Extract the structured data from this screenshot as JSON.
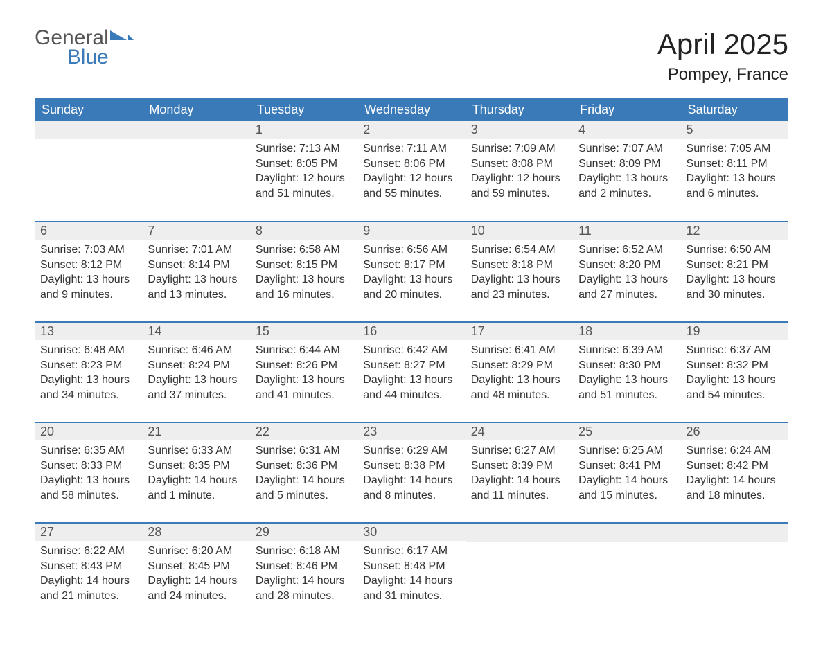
{
  "logo": {
    "text_general": "General",
    "text_blue": "Blue"
  },
  "title": "April 2025",
  "subtitle": "Pompey, France",
  "colors": {
    "header_bg": "#3b7ab8",
    "header_text": "#ffffff",
    "daynum_bg": "#eeeeee",
    "row_border": "#3b7ab8",
    "body_text": "#333333",
    "logo_gray": "#555555",
    "logo_blue": "#3b7ab8",
    "background": "#ffffff"
  },
  "weekdays": [
    "Sunday",
    "Monday",
    "Tuesday",
    "Wednesday",
    "Thursday",
    "Friday",
    "Saturday"
  ],
  "weeks": [
    [
      null,
      null,
      {
        "day": "1",
        "sunrise": "7:13 AM",
        "sunset": "8:05 PM",
        "daylight": "12 hours and 51 minutes."
      },
      {
        "day": "2",
        "sunrise": "7:11 AM",
        "sunset": "8:06 PM",
        "daylight": "12 hours and 55 minutes."
      },
      {
        "day": "3",
        "sunrise": "7:09 AM",
        "sunset": "8:08 PM",
        "daylight": "12 hours and 59 minutes."
      },
      {
        "day": "4",
        "sunrise": "7:07 AM",
        "sunset": "8:09 PM",
        "daylight": "13 hours and 2 minutes."
      },
      {
        "day": "5",
        "sunrise": "7:05 AM",
        "sunset": "8:11 PM",
        "daylight": "13 hours and 6 minutes."
      }
    ],
    [
      {
        "day": "6",
        "sunrise": "7:03 AM",
        "sunset": "8:12 PM",
        "daylight": "13 hours and 9 minutes."
      },
      {
        "day": "7",
        "sunrise": "7:01 AM",
        "sunset": "8:14 PM",
        "daylight": "13 hours and 13 minutes."
      },
      {
        "day": "8",
        "sunrise": "6:58 AM",
        "sunset": "8:15 PM",
        "daylight": "13 hours and 16 minutes."
      },
      {
        "day": "9",
        "sunrise": "6:56 AM",
        "sunset": "8:17 PM",
        "daylight": "13 hours and 20 minutes."
      },
      {
        "day": "10",
        "sunrise": "6:54 AM",
        "sunset": "8:18 PM",
        "daylight": "13 hours and 23 minutes."
      },
      {
        "day": "11",
        "sunrise": "6:52 AM",
        "sunset": "8:20 PM",
        "daylight": "13 hours and 27 minutes."
      },
      {
        "day": "12",
        "sunrise": "6:50 AM",
        "sunset": "8:21 PM",
        "daylight": "13 hours and 30 minutes."
      }
    ],
    [
      {
        "day": "13",
        "sunrise": "6:48 AM",
        "sunset": "8:23 PM",
        "daylight": "13 hours and 34 minutes."
      },
      {
        "day": "14",
        "sunrise": "6:46 AM",
        "sunset": "8:24 PM",
        "daylight": "13 hours and 37 minutes."
      },
      {
        "day": "15",
        "sunrise": "6:44 AM",
        "sunset": "8:26 PM",
        "daylight": "13 hours and 41 minutes."
      },
      {
        "day": "16",
        "sunrise": "6:42 AM",
        "sunset": "8:27 PM",
        "daylight": "13 hours and 44 minutes."
      },
      {
        "day": "17",
        "sunrise": "6:41 AM",
        "sunset": "8:29 PM",
        "daylight": "13 hours and 48 minutes."
      },
      {
        "day": "18",
        "sunrise": "6:39 AM",
        "sunset": "8:30 PM",
        "daylight": "13 hours and 51 minutes."
      },
      {
        "day": "19",
        "sunrise": "6:37 AM",
        "sunset": "8:32 PM",
        "daylight": "13 hours and 54 minutes."
      }
    ],
    [
      {
        "day": "20",
        "sunrise": "6:35 AM",
        "sunset": "8:33 PM",
        "daylight": "13 hours and 58 minutes."
      },
      {
        "day": "21",
        "sunrise": "6:33 AM",
        "sunset": "8:35 PM",
        "daylight": "14 hours and 1 minute."
      },
      {
        "day": "22",
        "sunrise": "6:31 AM",
        "sunset": "8:36 PM",
        "daylight": "14 hours and 5 minutes."
      },
      {
        "day": "23",
        "sunrise": "6:29 AM",
        "sunset": "8:38 PM",
        "daylight": "14 hours and 8 minutes."
      },
      {
        "day": "24",
        "sunrise": "6:27 AM",
        "sunset": "8:39 PM",
        "daylight": "14 hours and 11 minutes."
      },
      {
        "day": "25",
        "sunrise": "6:25 AM",
        "sunset": "8:41 PM",
        "daylight": "14 hours and 15 minutes."
      },
      {
        "day": "26",
        "sunrise": "6:24 AM",
        "sunset": "8:42 PM",
        "daylight": "14 hours and 18 minutes."
      }
    ],
    [
      {
        "day": "27",
        "sunrise": "6:22 AM",
        "sunset": "8:43 PM",
        "daylight": "14 hours and 21 minutes."
      },
      {
        "day": "28",
        "sunrise": "6:20 AM",
        "sunset": "8:45 PM",
        "daylight": "14 hours and 24 minutes."
      },
      {
        "day": "29",
        "sunrise": "6:18 AM",
        "sunset": "8:46 PM",
        "daylight": "14 hours and 28 minutes."
      },
      {
        "day": "30",
        "sunrise": "6:17 AM",
        "sunset": "8:48 PM",
        "daylight": "14 hours and 31 minutes."
      },
      null,
      null,
      null
    ]
  ],
  "labels": {
    "sunrise": "Sunrise: ",
    "sunset": "Sunset: ",
    "daylight": "Daylight: "
  }
}
